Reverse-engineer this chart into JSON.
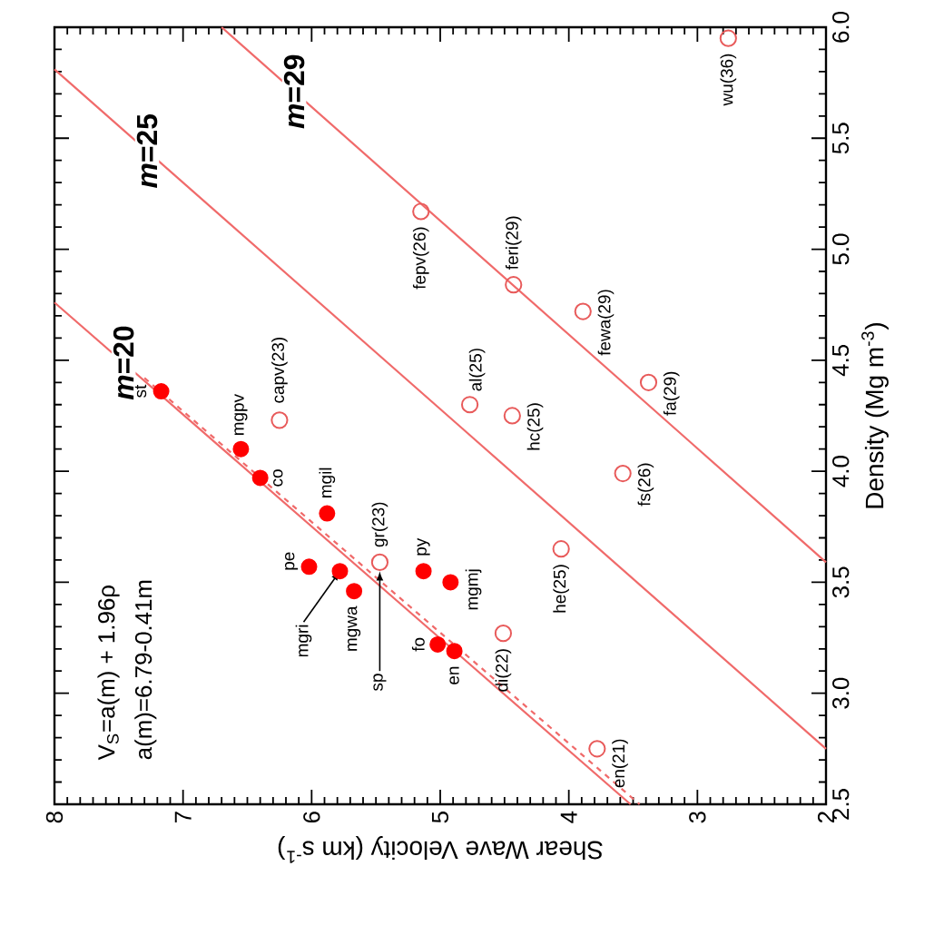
{
  "chart_data": {
    "type": "scatter",
    "xlabel": "Shear Wave Velocity (km s$^{-1}$)",
    "ylabel": "Density (Mg m$^{-3}$)",
    "xlim": [
      8,
      2
    ],
    "ylim": [
      2.5,
      6.0
    ],
    "xticks": [
      8,
      7,
      6,
      5,
      4,
      3,
      2
    ],
    "yticks": [
      2.5,
      {
        "value": 3,
        "label": "3.0"
      },
      3.5,
      {
        "value": 4,
        "label": "4.0"
      },
      4.5,
      {
        "value": 5,
        "label": "5.0"
      },
      5.5,
      {
        "value": 6,
        "label": "6.0"
      }
    ],
    "series": [
      {
        "marker": "circle",
        "color": "#ff0000",
        "x": [
          7.17,
          6.55,
          6.4,
          5.88,
          6.02,
          5.78,
          5.67,
          5.13,
          4.92,
          5.02,
          4.89
        ],
        "values": [
          4.36,
          4.1,
          3.97,
          3.81,
          3.57,
          3.55,
          3.46,
          3.55,
          3.5,
          3.22,
          3.19
        ]
      },
      {
        "marker": "open circle",
        "color": "#e85a5a",
        "x": [
          5.47,
          6.25,
          5.15,
          4.77,
          4.44,
          4.43,
          3.89,
          3.38,
          2.76,
          3.58,
          4.06,
          4.51,
          3.78
        ],
        "values": [
          3.59,
          4.23,
          5.17,
          4.3,
          4.25,
          4.84,
          4.72,
          4.4,
          5.95,
          3.99,
          3.65,
          3.27,
          2.75
        ]
      },
      {
        "type": "line",
        "name": "*m*=20",
        "color": "#f06a6a",
        "line_style": "solid",
        "x": [
          8,
          3.52
        ],
        "values": [
          4.76,
          2.5
        ]
      },
      {
        "type": "line",
        "name": "*m*=25",
        "color": "#f06a6a",
        "line_style": "solid",
        "x": [
          8,
          2
        ],
        "values": [
          5.81,
          2.75
        ]
      },
      {
        "type": "line",
        "name": "*m*=29",
        "color": "#f06a6a",
        "line_style": "solid",
        "x": [
          6.7,
          2
        ],
        "values": [
          6.0,
          3.59
        ]
      },
      {
        "type": "line",
        "color": "#f06a6a",
        "line_style": "dashed",
        "x": [
          7.3,
          3.45
        ],
        "values": [
          4.42,
          2.5
        ]
      }
    ],
    "annotations": [
      {
        "text": "st",
        "x": 7.17,
        "y": 4.36
      },
      {
        "text": "mgpv",
        "x": 6.55,
        "y": 4.1
      },
      {
        "text": "co",
        "x": 6.4,
        "y": 3.97
      },
      {
        "text": "capv(23)",
        "x": 6.25,
        "y": 4.23
      },
      {
        "text": "mgil",
        "x": 5.88,
        "y": 3.81
      },
      {
        "text": "pe",
        "x": 6.02,
        "y": 3.57
      },
      {
        "text": "mgri",
        "x": 5.78,
        "y": 3.55
      },
      {
        "text": "mgwa",
        "x": 5.67,
        "y": 3.46
      },
      {
        "text": "gr(23)",
        "x": 5.47,
        "y": 3.59
      },
      {
        "text": "sp",
        "x": 5.47,
        "y": 3.55
      },
      {
        "text": "py",
        "x": 5.13,
        "y": 3.55
      },
      {
        "text": "mgmj",
        "x": 4.92,
        "y": 3.5
      },
      {
        "text": "fo",
        "x": 5.02,
        "y": 3.22
      },
      {
        "text": "en",
        "x": 4.89,
        "y": 3.19
      },
      {
        "text": "fepv(26)",
        "x": 5.15,
        "y": 5.17
      },
      {
        "text": "al(25)",
        "x": 4.77,
        "y": 4.3
      },
      {
        "text": "hc(25)",
        "x": 4.44,
        "y": 4.25
      },
      {
        "text": "feri(29)",
        "x": 4.43,
        "y": 4.84
      },
      {
        "text": "fewa(29)",
        "x": 3.89,
        "y": 4.72
      },
      {
        "text": "fa(29)",
        "x": 3.38,
        "y": 4.4
      },
      {
        "text": "wu(36)",
        "x": 2.76,
        "y": 5.95
      },
      {
        "text": "fs(26)",
        "x": 3.58,
        "y": 3.99
      },
      {
        "text": "he(25)",
        "x": 4.06,
        "y": 3.65
      },
      {
        "text": "di(22)",
        "x": 4.51,
        "y": 3.27
      },
      {
        "text": "en(21)",
        "x": 3.78,
        "y": 2.75
      },
      "V$_{S}$=a(m) + 1.96ρ",
      "a(m)=6.79-0.41m"
    ]
  }
}
